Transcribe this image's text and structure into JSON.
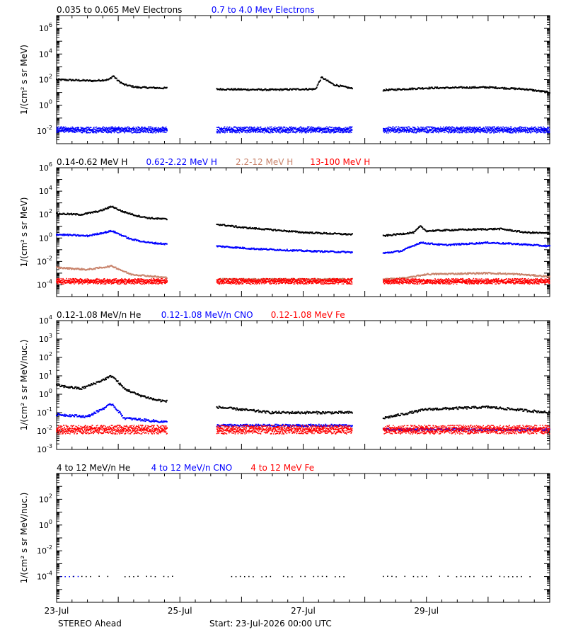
{
  "footer": {
    "spacecraft": "STEREO Ahead",
    "start": "Start: 23-Jul-2026 00:00 UTC"
  },
  "chart_data": [
    {
      "type": "scatter",
      "ylabel": "1/(cm² s sr MeV)",
      "yscale": "log",
      "ylim": [
        0.001,
        10000000
      ],
      "ytick_exponents": [
        -2,
        0,
        2,
        4,
        6
      ],
      "xticks": [
        "23-Jul",
        "25-Jul",
        "27-Jul",
        "29-Jul"
      ],
      "series": [
        {
          "name": "0.035 to 0.065 MeV Electrons",
          "color": "#000000",
          "style": "curve",
          "segments": [
            [
              [
                0,
                100
              ],
              [
                0.3,
                90
              ],
              [
                0.6,
                80
              ],
              [
                0.85,
                100
              ],
              [
                0.92,
                200
              ],
              [
                1.0,
                80
              ],
              [
                1.1,
                40
              ],
              [
                1.3,
                25
              ],
              [
                1.7,
                22
              ],
              [
                1.8,
                22
              ]
            ],
            [
              [
                2.6,
                18
              ],
              [
                3.0,
                17
              ],
              [
                3.5,
                16
              ],
              [
                4.0,
                18
              ],
              [
                4.2,
                18
              ],
              [
                4.3,
                150
              ],
              [
                4.5,
                40
              ],
              [
                4.8,
                20
              ]
            ],
            [
              [
                5.3,
                15
              ],
              [
                6.0,
                22
              ],
              [
                7.0,
                25
              ],
              [
                7.6,
                18
              ],
              [
                8.0,
                10
              ]
            ]
          ]
        },
        {
          "name": "0.7 to 4.0 Mev Electrons",
          "color": "#0000ff",
          "style": "band",
          "segments": [
            [
              [
                0,
                0.012
              ],
              [
                1.8,
                0.012
              ]
            ],
            [
              [
                2.6,
                0.012
              ],
              [
                4.8,
                0.012
              ]
            ],
            [
              [
                5.3,
                0.012
              ],
              [
                8.0,
                0.012
              ]
            ]
          ]
        }
      ]
    },
    {
      "type": "scatter",
      "ylabel": "1/(cm² s sr MeV)",
      "yscale": "log",
      "ylim": [
        1e-05,
        1000000
      ],
      "ytick_exponents": [
        -4,
        -2,
        0,
        2,
        4,
        6
      ],
      "xticks": [
        "23-Jul",
        "25-Jul",
        "27-Jul",
        "29-Jul"
      ],
      "series": [
        {
          "name": "0.14-0.62 MeV H",
          "color": "#000000",
          "style": "curve",
          "segments": [
            [
              [
                0,
                120
              ],
              [
                0.4,
                100
              ],
              [
                0.7,
                200
              ],
              [
                0.9,
                500
              ],
              [
                1.05,
                200
              ],
              [
                1.3,
                80
              ],
              [
                1.5,
                50
              ],
              [
                1.8,
                40
              ]
            ],
            [
              [
                2.6,
                15
              ],
              [
                3.0,
                8
              ],
              [
                3.5,
                5
              ],
              [
                4.0,
                3
              ],
              [
                4.8,
                2
              ]
            ],
            [
              [
                5.3,
                1.5
              ],
              [
                5.8,
                3
              ],
              [
                5.9,
                10
              ],
              [
                6.0,
                4
              ],
              [
                6.5,
                5
              ],
              [
                7.2,
                6
              ],
              [
                7.6,
                3
              ],
              [
                8.0,
                2.5
              ]
            ]
          ]
        },
        {
          "name": "0.62-2.22 MeV H",
          "color": "#0000ff",
          "style": "curve",
          "segments": [
            [
              [
                0,
                2
              ],
              [
                0.5,
                1.5
              ],
              [
                0.9,
                4
              ],
              [
                1.2,
                0.8
              ],
              [
                1.5,
                0.4
              ],
              [
                1.8,
                0.3
              ]
            ],
            [
              [
                2.6,
                0.2
              ],
              [
                3.2,
                0.12
              ],
              [
                4.0,
                0.08
              ],
              [
                4.8,
                0.06
              ]
            ],
            [
              [
                5.3,
                0.05
              ],
              [
                5.6,
                0.08
              ],
              [
                5.9,
                0.4
              ],
              [
                6.3,
                0.25
              ],
              [
                7.0,
                0.4
              ],
              [
                7.5,
                0.3
              ],
              [
                8.0,
                0.2
              ]
            ]
          ]
        },
        {
          "name": "2.2-12 MeV H",
          "color": "#c8826a",
          "style": "curve",
          "segments": [
            [
              [
                0,
                0.003
              ],
              [
                0.5,
                0.002
              ],
              [
                0.9,
                0.004
              ],
              [
                1.2,
                0.0008
              ],
              [
                1.8,
                0.0004
              ]
            ],
            [
              [
                2.6,
                0.0003
              ],
              [
                4.8,
                0.0003
              ]
            ],
            [
              [
                5.3,
                0.0003
              ],
              [
                5.7,
                0.0004
              ],
              [
                6.0,
                0.0008
              ],
              [
                7.0,
                0.001
              ],
              [
                7.5,
                0.0008
              ],
              [
                8.0,
                0.0005
              ]
            ]
          ]
        },
        {
          "name": "13-100 MeV H",
          "color": "#ff0000",
          "style": "band",
          "segments": [
            [
              [
                0,
                0.0002
              ],
              [
                1.8,
                0.0002
              ]
            ],
            [
              [
                2.6,
                0.0002
              ],
              [
                4.8,
                0.0002
              ]
            ],
            [
              [
                5.3,
                0.0002
              ],
              [
                8.0,
                0.0002
              ]
            ]
          ]
        }
      ]
    },
    {
      "type": "scatter",
      "ylabel": "1/(cm² s sr MeV/nuc.)",
      "yscale": "log",
      "ylim": [
        0.001,
        10000
      ],
      "ytick_exponents": [
        -3,
        -2,
        -1,
        0,
        1,
        2,
        3,
        4
      ],
      "xticks": [
        "23-Jul",
        "25-Jul",
        "27-Jul",
        "29-Jul"
      ],
      "series": [
        {
          "name": "0.12-1.08 MeV/n He",
          "color": "#000000",
          "style": "curve",
          "segments": [
            [
              [
                0,
                3
              ],
              [
                0.4,
                2
              ],
              [
                0.7,
                5
              ],
              [
                0.9,
                10
              ],
              [
                1.1,
                2
              ],
              [
                1.3,
                1
              ],
              [
                1.6,
                0.5
              ],
              [
                1.8,
                0.4
              ]
            ],
            [
              [
                2.6,
                0.2
              ],
              [
                3.5,
                0.1
              ],
              [
                4.8,
                0.1
              ]
            ],
            [
              [
                5.3,
                0.05
              ],
              [
                6.0,
                0.15
              ],
              [
                7.0,
                0.2
              ],
              [
                8.0,
                0.1
              ]
            ]
          ]
        },
        {
          "name": "0.12-1.08 MeV/n CNO",
          "color": "#0000ff",
          "style": "curve",
          "segments": [
            [
              [
                0,
                0.08
              ],
              [
                0.5,
                0.06
              ],
              [
                0.9,
                0.3
              ],
              [
                1.1,
                0.05
              ],
              [
                1.8,
                0.03
              ]
            ],
            [
              [
                2.6,
                0.02
              ],
              [
                4.8,
                0.02
              ]
            ],
            [
              [
                5.3,
                0.012
              ],
              [
                8.0,
                0.012
              ]
            ]
          ]
        },
        {
          "name": "0.12-1.08 MeV Fe",
          "color": "#ff0000",
          "style": "band",
          "segments": [
            [
              [
                0,
                0.012
              ],
              [
                1.8,
                0.012
              ]
            ],
            [
              [
                2.6,
                0.012
              ],
              [
                4.8,
                0.012
              ]
            ],
            [
              [
                5.3,
                0.012
              ],
              [
                8.0,
                0.012
              ]
            ]
          ]
        }
      ]
    },
    {
      "type": "scatter",
      "ylabel": "1/(cm² s sr MeV/nuc.)",
      "yscale": "log",
      "ylim": [
        1e-06,
        10000
      ],
      "ytick_exponents": [
        -4,
        -2,
        0,
        2
      ],
      "xticks": [
        "23-Jul",
        "25-Jul",
        "27-Jul",
        "29-Jul"
      ],
      "series": [
        {
          "name": "4 to 12 MeV/n He",
          "color": "#000000",
          "style": "sparse",
          "segments": [
            [
              [
                0.2,
                0.0001
              ],
              [
                1.9,
                0.0001
              ]
            ],
            [
              [
                2.7,
                0.0001
              ],
              [
                4.8,
                0.0001
              ]
            ],
            [
              [
                5.3,
                0.0001
              ],
              [
                7.8,
                0.0001
              ]
            ]
          ]
        },
        {
          "name": "4 to 12 MeV/n CNO",
          "color": "#0000ff",
          "style": "sparse",
          "segments": [
            [
              [
                0,
                0.0001
              ],
              [
                0.4,
                0.0001
              ]
            ]
          ]
        },
        {
          "name": "4 to 12 MeV Fe",
          "color": "#ff0000",
          "style": "sparse",
          "segments": [
            [
              [
                0.9,
                5e-06
              ],
              [
                0.95,
                5e-06
              ]
            ]
          ]
        }
      ]
    }
  ]
}
